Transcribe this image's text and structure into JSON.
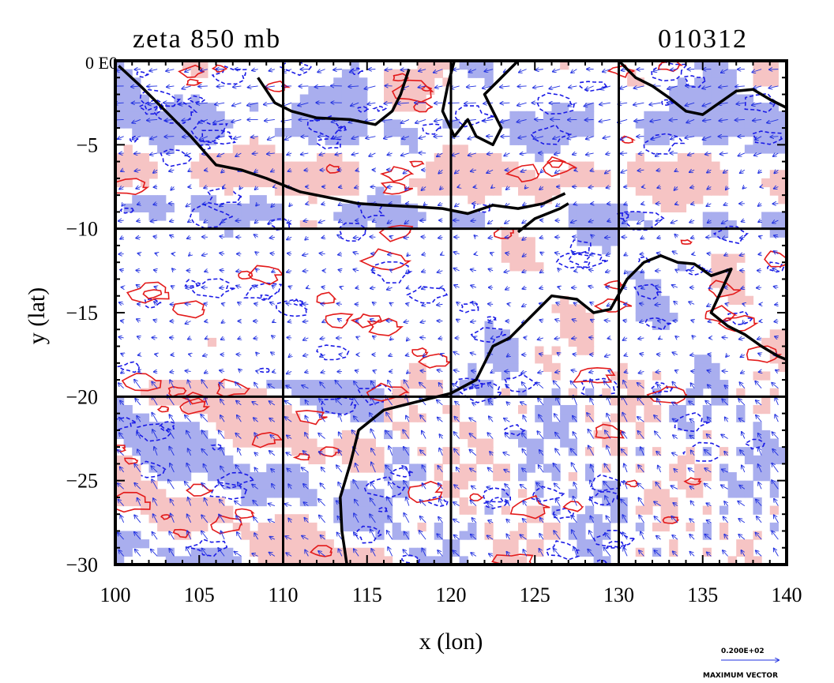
{
  "title": "zeta 850 mb",
  "date_code": "010312",
  "xlabel": "x (lon)",
  "ylabel": "y (lat)",
  "corner_label": "0 E0",
  "xticks": [
    100,
    105,
    110,
    115,
    120,
    125,
    130,
    135,
    140
  ],
  "yticks": [
    0,
    -5,
    -10,
    -15,
    -20,
    -25,
    -30
  ],
  "xlim": [
    100,
    140
  ],
  "ylim": [
    -30,
    0
  ],
  "grid_lon": [
    110,
    120,
    130
  ],
  "grid_lat": [
    -10,
    -20
  ],
  "legend": {
    "vector_value": "0.200E+02",
    "vector_label": "MAXIMUM VECTOR"
  },
  "colors": {
    "positive_fill": "#f6c4c4",
    "positive_line": "#e31a1a",
    "negative_fill": "#a9aeee",
    "negative_line": "#1a1ae6",
    "vector": "#1f2fe0",
    "coast": "#000000"
  },
  "chart_data": {
    "type": "map",
    "title": "zeta 850 mb",
    "date": "010312",
    "xlabel": "x (lon)",
    "ylabel": "y (lat)",
    "xlim": [
      100,
      140
    ],
    "ylim": [
      -30,
      0
    ],
    "coastline_segments": [
      {
        "name": "sumatra-java-coast",
        "points": [
          [
            100.2,
            -0.3
          ],
          [
            101.5,
            -1.5
          ],
          [
            103,
            -3
          ],
          [
            104.5,
            -4.5
          ],
          [
            106,
            -6.2
          ],
          [
            107.5,
            -6.5
          ],
          [
            109,
            -7
          ],
          [
            111,
            -7.8
          ],
          [
            113,
            -8.2
          ],
          [
            114.5,
            -8.5
          ],
          [
            116,
            -8.6
          ],
          [
            118,
            -8.7
          ],
          [
            119.5,
            -8.8
          ],
          [
            121,
            -9.1
          ],
          [
            122.5,
            -8.6
          ],
          [
            124,
            -8.8
          ],
          [
            125.5,
            -8.5
          ],
          [
            126.8,
            -7.9
          ]
        ]
      },
      {
        "name": "borneo-south-coast",
        "points": [
          [
            108.5,
            -1
          ],
          [
            109.5,
            -2.5
          ],
          [
            110.5,
            -3
          ],
          [
            112,
            -3.4
          ],
          [
            114,
            -3.5
          ],
          [
            115.5,
            -3.8
          ],
          [
            116.5,
            -3
          ],
          [
            117,
            -2
          ],
          [
            117.5,
            -0.5
          ]
        ]
      },
      {
        "name": "sulawesi-coast",
        "points": [
          [
            120.2,
            0
          ],
          [
            119.8,
            -1.5
          ],
          [
            119.5,
            -3
          ],
          [
            120.2,
            -4.5
          ],
          [
            121,
            -3.5
          ],
          [
            121.5,
            -4.5
          ],
          [
            122.5,
            -5
          ],
          [
            123,
            -4
          ],
          [
            122,
            -2
          ],
          [
            123,
            -1
          ],
          [
            124,
            0
          ]
        ]
      },
      {
        "name": "new-guinea-coast",
        "points": [
          [
            130,
            0
          ],
          [
            131,
            -1
          ],
          [
            132,
            -1.5
          ],
          [
            133,
            -2.2
          ],
          [
            134,
            -3
          ],
          [
            135,
            -3.2
          ],
          [
            136,
            -2.5
          ],
          [
            137,
            -1.8
          ],
          [
            138,
            -1.7
          ],
          [
            139,
            -2.3
          ],
          [
            140,
            -2.8
          ]
        ]
      },
      {
        "name": "australia-coast",
        "points": [
          [
            113.8,
            -30
          ],
          [
            113.5,
            -28
          ],
          [
            113.4,
            -26
          ],
          [
            114,
            -24
          ],
          [
            114.5,
            -22
          ],
          [
            116,
            -20.8
          ],
          [
            118,
            -20.3
          ],
          [
            120,
            -19.8
          ],
          [
            121.5,
            -19
          ],
          [
            122.5,
            -17
          ],
          [
            123.5,
            -16.5
          ],
          [
            124.5,
            -15.5
          ],
          [
            126,
            -14
          ],
          [
            127.5,
            -14.2
          ],
          [
            128.5,
            -15
          ],
          [
            129.5,
            -14.8
          ],
          [
            130.5,
            -13
          ],
          [
            131.5,
            -12
          ],
          [
            132.5,
            -11.6
          ],
          [
            133.5,
            -12
          ],
          [
            134.5,
            -12.1
          ],
          [
            135.5,
            -12.8
          ],
          [
            136.7,
            -12.4
          ],
          [
            136.2,
            -13.5
          ],
          [
            135.5,
            -15
          ],
          [
            136.5,
            -15.8
          ],
          [
            137.5,
            -16.3
          ],
          [
            138.5,
            -17
          ],
          [
            139.5,
            -17.6
          ],
          [
            140,
            -17.8
          ]
        ]
      },
      {
        "name": "timor-coast",
        "points": [
          [
            124,
            -10.2
          ],
          [
            125,
            -9.4
          ],
          [
            126.5,
            -8.8
          ],
          [
            127,
            -8.5
          ]
        ]
      }
    ]
  }
}
